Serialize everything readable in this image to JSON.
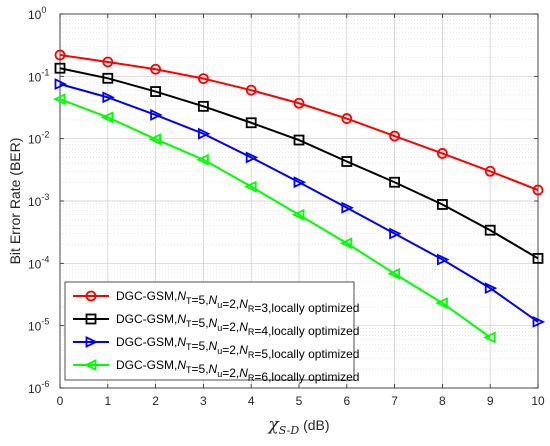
{
  "chart_data": {
    "type": "line",
    "x": [
      0,
      1,
      2,
      3,
      4,
      5,
      6,
      7,
      8,
      9,
      10
    ],
    "xlim": [
      0,
      10
    ],
    "ylim": [
      1e-06,
      1
    ],
    "yscale": "log",
    "grid": true,
    "legend_position": "bottom-left",
    "xlabel": {
      "symbol": "χ",
      "subscript": "S-D",
      "unit": " (dB)"
    },
    "ylabel": "Bit Error Rate (BER)",
    "xticks": [
      "0",
      "1",
      "2",
      "3",
      "4",
      "5",
      "6",
      "7",
      "8",
      "9",
      "10"
    ],
    "yticks": [
      {
        "value": 1,
        "base": "10",
        "exp": "0"
      },
      {
        "value": 0.1,
        "base": "10",
        "exp": "-1"
      },
      {
        "value": 0.01,
        "base": "10",
        "exp": "-2"
      },
      {
        "value": 0.001,
        "base": "10",
        "exp": "-3"
      },
      {
        "value": 0.0001,
        "base": "10",
        "exp": "-4"
      },
      {
        "value": 1e-05,
        "base": "10",
        "exp": "-5"
      },
      {
        "value": 1e-06,
        "base": "10",
        "exp": "-6"
      }
    ],
    "series": [
      {
        "name": "DGC-GSM,N_T=5,N_u=2,N_R=3,locally optimized",
        "label_parts": [
          "DGC-GSM,",
          "N",
          "T",
          "=5,",
          "N",
          "u",
          "=2,",
          "N",
          "R",
          "=3,locally optimized"
        ],
        "color": "#ff0000",
        "marker": "circle",
        "values": [
          0.22,
          0.17,
          0.13,
          0.092,
          0.06,
          0.037,
          0.021,
          0.011,
          0.0058,
          0.003,
          0.0015
        ]
      },
      {
        "name": "DGC-GSM,N_T=5,N_u=2,N_R=4,locally optimized",
        "label_parts": [
          "DGC-GSM,",
          "N",
          "T",
          "=5,",
          "N",
          "u",
          "=2,",
          "N",
          "R",
          "=4,locally optimized"
        ],
        "color": "#000000",
        "marker": "square",
        "values": [
          0.135,
          0.093,
          0.057,
          0.033,
          0.018,
          0.0095,
          0.0043,
          0.002,
          0.00088,
          0.00034,
          0.00012
        ]
      },
      {
        "name": "DGC-GSM,N_T=5,N_u=2,N_R=5,locally optimized",
        "label_parts": [
          "DGC-GSM,",
          "N",
          "T",
          "=5,",
          "N",
          "u",
          "=2,",
          "N",
          "R",
          "=5,locally optimized"
        ],
        "color": "#0000ff",
        "marker": "triangle-right",
        "values": [
          0.075,
          0.046,
          0.024,
          0.012,
          0.005,
          0.002,
          0.00078,
          0.0003,
          0.000115,
          4e-05,
          1.15e-05
        ]
      },
      {
        "name": "DGC-GSM,N_T=5,N_u=2,N_R=6,locally optimized",
        "label_parts": [
          "DGC-GSM,",
          "N",
          "T",
          "=5,",
          "N",
          "u",
          "=2,",
          "N",
          "R",
          "=6,locally optimized"
        ],
        "color": "#00ff00",
        "marker": "triangle-left",
        "values": [
          0.043,
          0.022,
          0.0098,
          0.0046,
          0.0017,
          0.0006,
          0.00021,
          6.8e-05,
          2.3e-05,
          6.5e-06,
          null
        ]
      }
    ]
  }
}
